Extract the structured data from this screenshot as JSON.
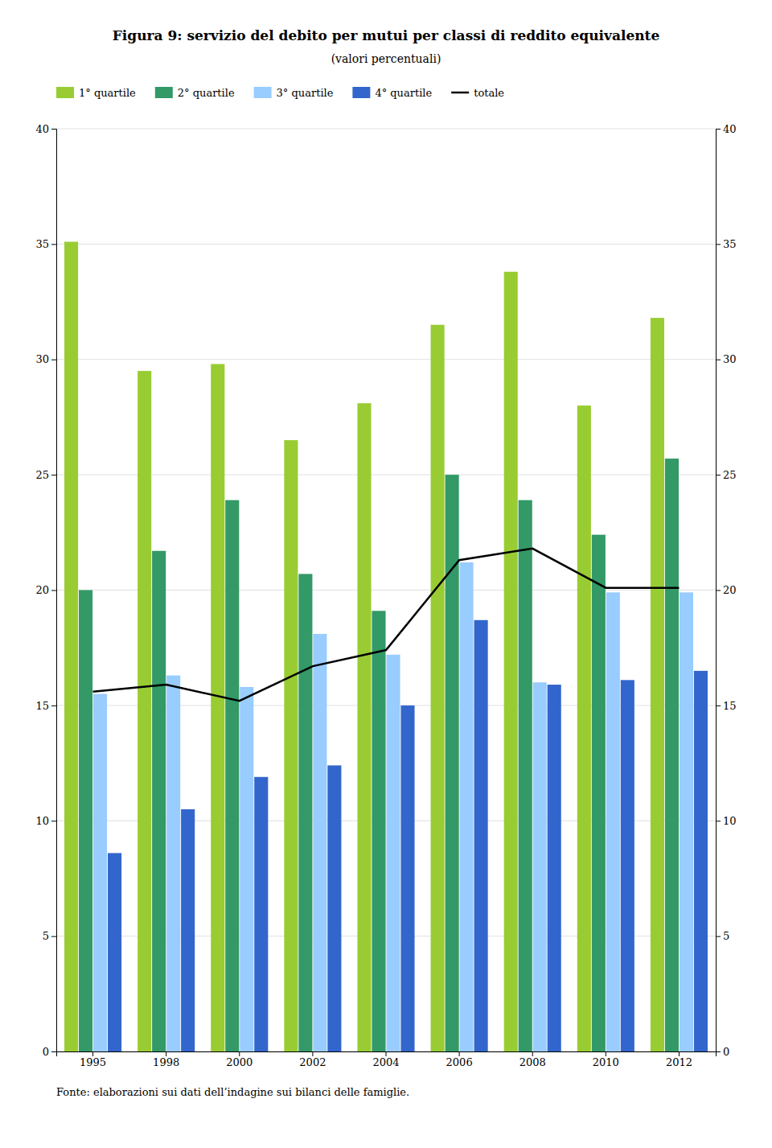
{
  "chart_data": {
    "type": "bar",
    "title": "Figura 9: servizio del debito per mutui per classi di reddito equivalente",
    "subtitle": "(valori percentuali)",
    "categories": [
      "1995",
      "1998",
      "2000",
      "2002",
      "2004",
      "2006",
      "2008",
      "2010",
      "2012"
    ],
    "series": [
      {
        "name": "1° quartile",
        "color": "#99cc33",
        "values": [
          35.1,
          29.5,
          29.8,
          26.5,
          28.1,
          31.5,
          33.8,
          28.0,
          31.8
        ]
      },
      {
        "name": "2° quartile",
        "color": "#339966",
        "values": [
          20.0,
          21.7,
          23.9,
          20.7,
          19.1,
          25.0,
          23.9,
          22.4,
          25.7
        ]
      },
      {
        "name": "3° quartile",
        "color": "#99ccff",
        "values": [
          15.5,
          16.3,
          15.8,
          18.1,
          17.2,
          21.2,
          16.0,
          19.9,
          19.9
        ]
      },
      {
        "name": "4° quartile",
        "color": "#3366cc",
        "values": [
          8.6,
          10.5,
          11.9,
          12.4,
          15.0,
          18.7,
          15.9,
          16.1,
          16.5
        ]
      },
      {
        "name": "totale",
        "type": "line",
        "color": "#000000",
        "values": [
          15.6,
          15.9,
          15.2,
          16.7,
          17.4,
          21.3,
          21.8,
          20.1,
          20.1
        ]
      }
    ],
    "ylim": [
      0,
      40
    ],
    "yticks": [
      0,
      5,
      10,
      15,
      20,
      25,
      30,
      35,
      40
    ],
    "y2lim": [
      0,
      40
    ],
    "y2ticks": [
      0,
      5,
      10,
      15,
      20,
      25,
      30,
      35,
      40
    ],
    "grid": true,
    "legend": "upper left",
    "annotations": [
      "Fonte: elaborazioni sui dati dell’indagine sui bilanci delle famiglie."
    ]
  }
}
